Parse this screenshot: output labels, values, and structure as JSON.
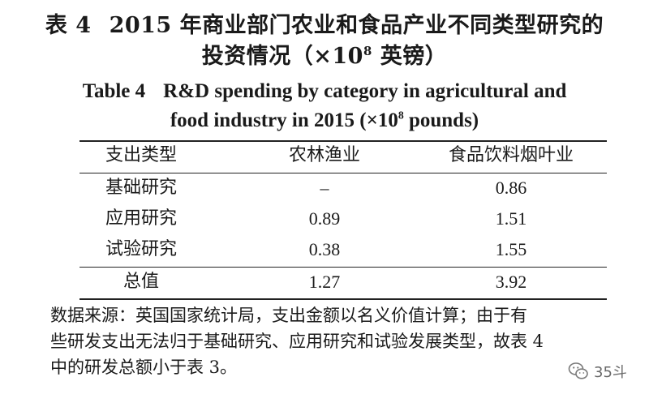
{
  "title_cn": {
    "label": "表 4",
    "line1": "2015 年商业部门农业和食品产业不同类型研究的",
    "line2_prefix": "投资情况（×10",
    "line2_sup": "8",
    "line2_suffix": " 英镑）"
  },
  "title_en": {
    "label": "Table 4",
    "line1": "R&D spending by category in agricultural and",
    "line2_prefix": "food industry in 2015 (×10",
    "line2_sup": "8",
    "line2_suffix": " pounds)"
  },
  "table": {
    "headers": [
      "支出类型",
      "农林渔业",
      "食品饮料烟叶业"
    ],
    "rows": [
      {
        "type": "基础研究",
        "agri": "–",
        "food": "0.86"
      },
      {
        "type": "应用研究",
        "agri": "0.89",
        "food": "1.51"
      },
      {
        "type": "试验研究",
        "agri": "0.38",
        "food": "1.55"
      }
    ],
    "total": {
      "type": "总值",
      "agri": "1.27",
      "food": "3.92"
    }
  },
  "note": {
    "line1": "数据来源：英国国家统计局，支出金额以名义价值计算；由于有",
    "line2": "些研发支出无法归于基础研究、应用研究和试验发展类型，故表 4",
    "line3": "中的研发总额小于表 3。"
  },
  "watermark": {
    "icon": "wechat-icon",
    "text": "35斗",
    "color": "#6a6a6a"
  }
}
